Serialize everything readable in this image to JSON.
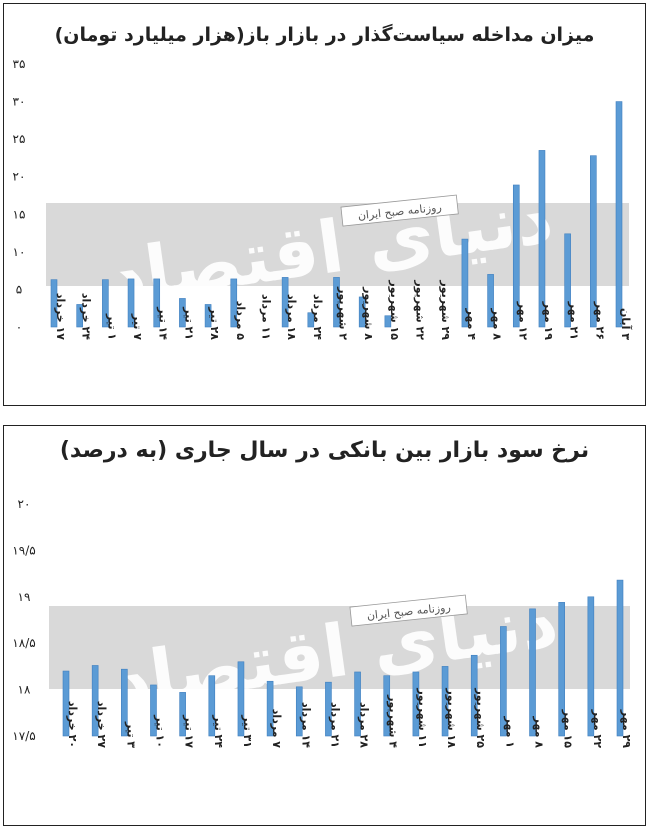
{
  "watermark": {
    "brand": "دنیای اقتصاد",
    "label": "روزنامه صبح ایران"
  },
  "chart_data": [
    {
      "type": "bar",
      "title": "میزان مداخله سیاست‌گذار در بازار باز(هزار میلیارد تومان)",
      "color": "#5b9bd5",
      "ylim": [
        0,
        35
      ],
      "yticks": [
        0,
        5,
        10,
        15,
        20,
        25,
        30,
        35
      ],
      "ytick_labels": [
        "۰",
        "۵",
        "۱۰",
        "۱۵",
        "۲۰",
        "۲۵",
        "۳۰",
        "۳۵"
      ],
      "categories": [
        "۱۷ خرداد",
        "۲۴ خرداد",
        "۱ تیر",
        "۷ تیر",
        "۱۴ تیر",
        "۲۱ تیر",
        "۲۸ تیر",
        "۵ مرداد",
        "۱۱ مرداد",
        "۱۸ مرداد",
        "۲۴ مرداد",
        "۲ شهریور",
        "۸ شهریور",
        "۱۵ شهریور",
        "۲۲ شهریور",
        "۲۹ شهریور",
        "۴ مهر",
        "۸ مهر",
        "۱۲ مهر",
        "۱۹ مهر",
        "۲۱ مهر",
        "۲۶ مهر",
        "۳ آبان"
      ],
      "values": [
        6.3,
        3.0,
        6.3,
        6.4,
        6.4,
        3.8,
        3.0,
        6.4,
        0,
        6.6,
        1.9,
        6.6,
        4.0,
        1.5,
        0,
        0,
        11.7,
        7.0,
        18.9,
        23.5,
        12.4,
        22.8,
        30.0
      ],
      "grid": false,
      "legend": "none"
    },
    {
      "type": "bar",
      "title": "نرخ سود بازار بین بانکی در سال جاری (به درصد)",
      "color": "#5b9bd5",
      "ylim": [
        17.5,
        20
      ],
      "yticks": [
        17.5,
        18,
        18.5,
        19,
        19.5,
        20
      ],
      "ytick_labels": [
        "۱۷/۵",
        "۱۸",
        "۱۸/۵",
        "۱۹",
        "۱۹/۵",
        "۲۰"
      ],
      "categories": [
        "۲۰ خرداد",
        "۲۷ خرداد",
        "۳ تیر",
        "۱۰ تیر",
        "۱۷ تیر",
        "۲۴ تیر",
        "۳۱ تیر",
        "۷ مرداد",
        "۱۴ مرداد",
        "۲۱ مرداد",
        "۲۸ مرداد",
        "۴ شهریور",
        "۱۱ شهریور",
        "۱۸ شهریور",
        "۲۵ شهریور",
        "۱ مهر",
        "۸ مهر",
        "۱۵ مهر",
        "۲۲ مهر",
        "۲۹ مهر"
      ],
      "values": [
        18.2,
        18.26,
        18.22,
        18.05,
        17.97,
        18.15,
        18.3,
        18.09,
        18.03,
        18.08,
        18.19,
        18.15,
        18.19,
        18.25,
        18.37,
        18.68,
        18.87,
        18.94,
        19.0,
        19.18
      ],
      "grid": false,
      "legend": "none"
    }
  ]
}
